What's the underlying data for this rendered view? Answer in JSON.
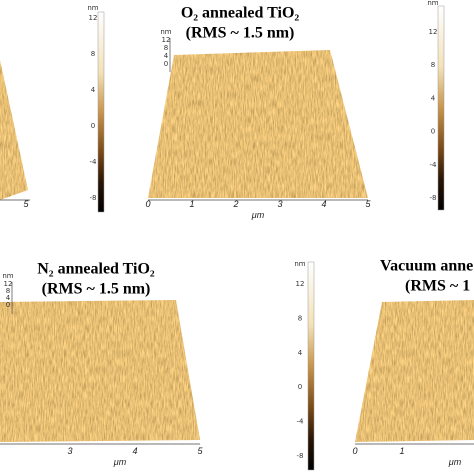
{
  "panels": [
    {
      "x_ticks": [
        5
      ]
    },
    {
      "title": "O₂ annealed TiO₂",
      "subtitle": "(RMS ~ 1.5 nm)",
      "x_ticks": [
        0,
        1,
        2,
        3,
        4,
        5
      ],
      "x_unit": "μm",
      "z_unit": "nm",
      "z_ticks": [
        12,
        8,
        4,
        0
      ]
    },
    {
      "title": "N₂ annealed TiO₂",
      "subtitle": "(RMS ~ 1.5 nm)",
      "x_ticks": [
        3,
        4,
        5
      ],
      "x_unit": "μm",
      "z_unit": "nm",
      "z_ticks": [
        12,
        8,
        4,
        0
      ]
    },
    {
      "title": "Vacuum anne",
      "subtitle": "(RMS ~ 1",
      "x_ticks": [
        0,
        1
      ],
      "x_unit": "μm"
    }
  ],
  "colorbars": [
    {
      "unit": "nm",
      "ticks": [
        12,
        8,
        4,
        0,
        -4,
        -8
      ]
    },
    {
      "unit": "nm",
      "ticks": [
        12,
        8,
        4,
        0,
        -4,
        -8
      ]
    },
    {
      "unit": "nm",
      "ticks": [
        12,
        8,
        4,
        0,
        -4,
        -8
      ]
    }
  ]
}
